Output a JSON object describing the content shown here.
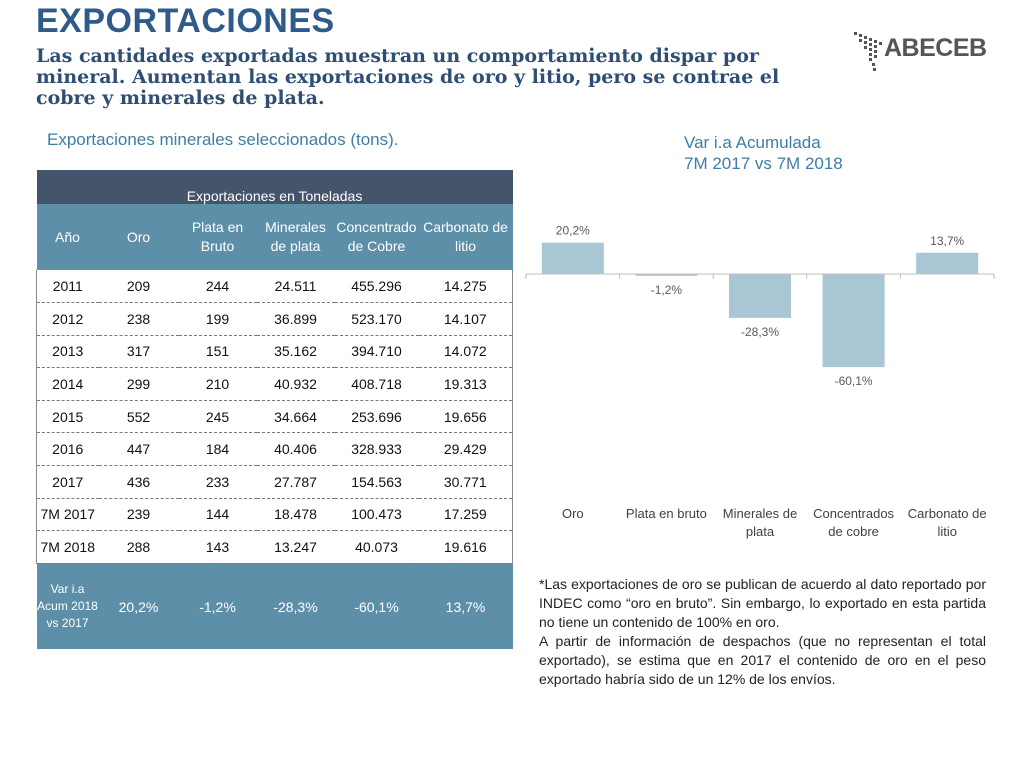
{
  "header": {
    "title": "EXPORTACIONES",
    "subtitle": "Las cantidades exportadas muestran un comportamiento dispar por mineral. Aumentan las exportaciones de oro y litio, pero se contrae el cobre y minerales de plata."
  },
  "logo": {
    "text": "ABECEB"
  },
  "table": {
    "caption": "Exportaciones minerales seleccionados (tons).",
    "group_header": "Exportaciones en Toneladas",
    "columns": [
      "Año",
      "Oro",
      "Plata en Bruto",
      "Minerales de plata",
      "Concentrado de Cobre",
      "Carbonato de litio"
    ],
    "rows": [
      [
        "2011",
        "209",
        "244",
        "24.511",
        "455.296",
        "14.275"
      ],
      [
        "2012",
        "238",
        "199",
        "36.899",
        "523.170",
        "14.107"
      ],
      [
        "2013",
        "317",
        "151",
        "35.162",
        "394.710",
        "14.072"
      ],
      [
        "2014",
        "299",
        "210",
        "40.932",
        "408.718",
        "19.313"
      ],
      [
        "2015",
        "552",
        "245",
        "34.664",
        "253.696",
        "19.656"
      ],
      [
        "2016",
        "447",
        "184",
        "40.406",
        "328.933",
        "29.429"
      ],
      [
        "2017",
        "436",
        "233",
        "27.787",
        "154.563",
        "30.771"
      ],
      [
        "7M 2017",
        "239",
        "144",
        "18.478",
        "100.473",
        "17.259"
      ],
      [
        "7M 2018",
        "288",
        "143",
        "13.247",
        "40.073",
        "19.616"
      ]
    ],
    "var_row": {
      "label": "Var i.a Acum 2018 vs 2017",
      "values": [
        "20,2%",
        "-1,2%",
        "-28,3%",
        "-60,1%",
        "13,7%"
      ]
    }
  },
  "chart_title": {
    "line1": "Var i.a Acumulada",
    "line2": "7M 2017 vs 7M 2018"
  },
  "chart_data": {
    "type": "bar",
    "title": "Var i.a Acumulada 7M 2017 vs 7M 2018",
    "categories": [
      "Oro",
      "Plata en bruto",
      "Minerales de plata",
      "Concentrados de cobre",
      "Carbonato de litio"
    ],
    "values": [
      20.2,
      -1.2,
      -28.3,
      -60.1,
      13.7
    ],
    "data_labels": [
      "20,2%",
      "-1,2%",
      "-28,3%",
      "-60,1%",
      "13,7%"
    ],
    "unit": "%",
    "ylim": [
      -60.1,
      20.2
    ],
    "grid": false,
    "legend": "none",
    "bar_color": "#a9c6d5"
  },
  "footnote": {
    "p1": "*Las exportaciones de oro se publican de acuerdo al dato reportado por INDEC como “oro en bruto”. Sin embargo, lo exportado en esta partida no tiene un contenido de 100% en oro.",
    "p2": "A partir de información de despachos (que no representan el total exportado), se estima que en 2017 el contenido de oro en el peso exportado habría sido de un 12% de los envíos."
  },
  "colors": {
    "title": "#2f5b8a",
    "accent": "#3c7ea6",
    "header_dark": "#44546a",
    "header_teal": "#5e8fa8",
    "bar": "#a9c6d5"
  }
}
